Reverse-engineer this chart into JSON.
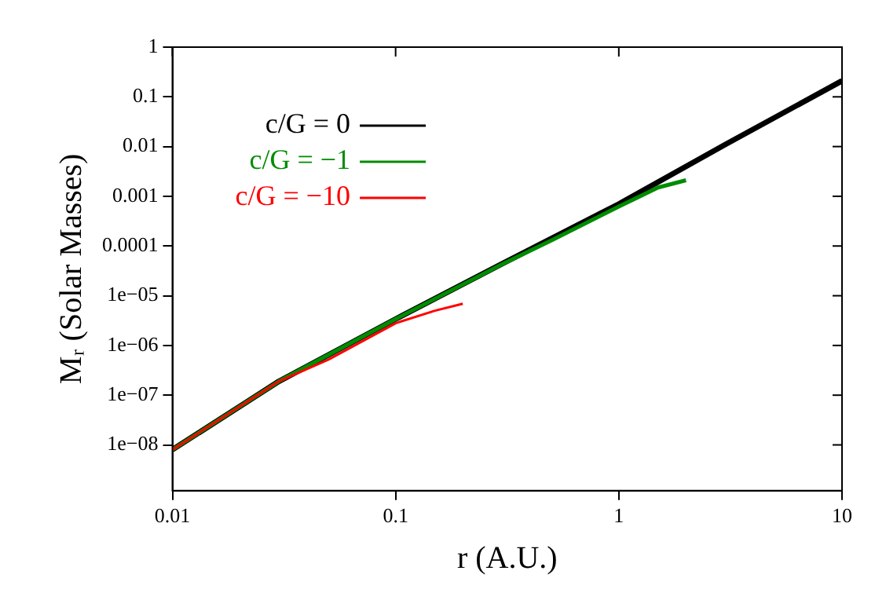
{
  "chart_data": {
    "type": "line",
    "xlabel": "r (A.U.)",
    "ylabel": "Mᵣ (Solar Masses)",
    "log": "xy",
    "grid": false,
    "legend": "top left",
    "marker": "none",
    "line_style": "solid",
    "xlim": [
      0.01,
      10
    ],
    "xticks": [
      0.01,
      0.1,
      1,
      10
    ],
    "ylim": [
      1.2e-09,
      1
    ],
    "yticks": [
      {
        "value": 1e-08,
        "label": "1e−08"
      },
      {
        "value": 1e-07,
        "label": "1e−07"
      },
      {
        "value": 1e-06,
        "label": "1e−06"
      },
      {
        "value": 1e-05,
        "label": "1e−05"
      },
      0.0001,
      0.001,
      0.01,
      0.1,
      1
    ],
    "series": [
      {
        "name": "c/G = 0",
        "color": "#000000",
        "x": [
          0.01,
          0.03,
          0.1,
          0.3,
          1,
          3,
          10
        ],
        "values": [
          8e-09,
          1.9e-07,
          3.4e-06,
          4.4e-05,
          0.0007,
          0.011,
          0.21
        ]
      },
      {
        "name": "c/G = −1",
        "color": "#008c00",
        "x": [
          0.01,
          0.03,
          0.1,
          0.3,
          0.5,
          1,
          1.5,
          2
        ],
        "values": [
          8e-09,
          1.9e-07,
          3.4e-06,
          4.3e-05,
          0.00013,
          0.00062,
          0.0015,
          0.0021
        ]
      },
      {
        "name": "c/G = −10",
        "color": "#ff0000",
        "x": [
          0.01,
          0.03,
          0.05,
          0.1,
          0.15,
          0.2
        ],
        "values": [
          8e-09,
          1.9e-07,
          5.2e-07,
          2.8e-06,
          5e-06,
          6.9e-06
        ]
      }
    ]
  }
}
